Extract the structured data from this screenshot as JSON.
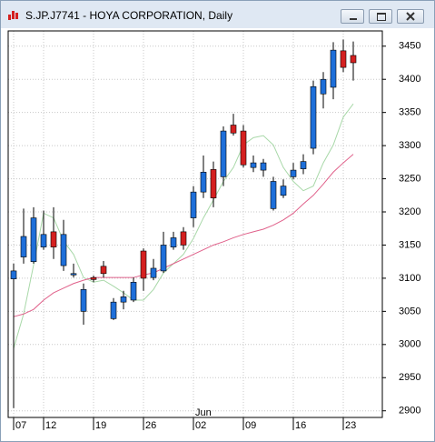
{
  "chart_data": {
    "type": "candlestick",
    "title": "S.JP.J7741 - HOYA CORPORATION, Daily",
    "categories": [
      "07",
      null,
      null,
      "12",
      null,
      null,
      null,
      null,
      "19",
      null,
      null,
      null,
      null,
      "26",
      null,
      null,
      null,
      null,
      "02",
      null,
      null,
      null,
      null,
      "09",
      null,
      null,
      null,
      null,
      "16",
      null,
      null,
      null,
      null,
      "23",
      null
    ],
    "month_label": "Jun",
    "month_start": 18,
    "open": [
      3099,
      3132,
      3125,
      3147,
      3170,
      3119,
      3105,
      3050,
      3101,
      3118,
      3039,
      3064,
      3067,
      3141,
      3101,
      3111,
      3147,
      3170,
      3191,
      3230,
      3264,
      3253,
      3331,
      3322,
      3267,
      3263,
      3205,
      3225,
      3253,
      3265,
      3296,
      3378,
      3388,
      3443,
      3436
    ],
    "high": [
      3122,
      3205,
      3207,
      3202,
      3207,
      3188,
      3122,
      3092,
      3104,
      3126,
      3070,
      3081,
      3101,
      3145,
      3129,
      3170,
      3170,
      3177,
      3239,
      3285,
      3276,
      3329,
      3348,
      3331,
      3285,
      3280,
      3253,
      3249,
      3274,
      3287,
      3398,
      3411,
      3456,
      3460,
      3457
    ],
    "low": [
      2904,
      3122,
      3122,
      3143,
      3129,
      3111,
      3101,
      3030,
      3094,
      3101,
      3037,
      3053,
      3064,
      3081,
      3097,
      3108,
      3143,
      3143,
      3177,
      3221,
      3207,
      3239,
      3315,
      3267,
      3260,
      3253,
      3202,
      3221,
      3249,
      3257,
      3287,
      3356,
      3370,
      3411,
      3398
    ],
    "close": [
      3111,
      3163,
      3191,
      3166,
      3147,
      3166,
      3107,
      3083,
      3098,
      3107,
      3064,
      3072,
      3094,
      3100,
      3115,
      3150,
      3161,
      3150,
      3230,
      3260,
      3221,
      3322,
      3319,
      3271,
      3274,
      3274,
      3246,
      3239,
      3263,
      3276,
      3389,
      3400,
      3444,
      3418,
      3425
    ],
    "up_color": "#1e6fd9",
    "down_color": "#d42020",
    "lines": [
      {
        "color": "#a8d8a8",
        "values": [
          2994,
          3046,
          3120,
          3198,
          3191,
          3156,
          3136,
          3101,
          3094,
          3097,
          3088,
          3078,
          3067,
          3067,
          3083,
          3108,
          3122,
          3136,
          3160,
          3191,
          3218,
          3246,
          3267,
          3301,
          3312,
          3315,
          3301,
          3267,
          3246,
          3232,
          3239,
          3274,
          3301,
          3343,
          3363
        ]
      },
      {
        "color": "#e0608a",
        "values": [
          3042,
          3046,
          3053,
          3067,
          3078,
          3085,
          3092,
          3097,
          3101,
          3101,
          3101,
          3101,
          3101,
          3105,
          3108,
          3115,
          3122,
          3129,
          3136,
          3143,
          3150,
          3155,
          3161,
          3166,
          3170,
          3174,
          3180,
          3188,
          3198,
          3212,
          3225,
          3242,
          3260,
          3274,
          3287
        ]
      }
    ],
    "ylim": [
      2890,
      3473
    ],
    "yticks": [
      2900,
      2950,
      3000,
      3050,
      3100,
      3150,
      3200,
      3250,
      3300,
      3350,
      3400,
      3450
    ],
    "grid": true
  }
}
